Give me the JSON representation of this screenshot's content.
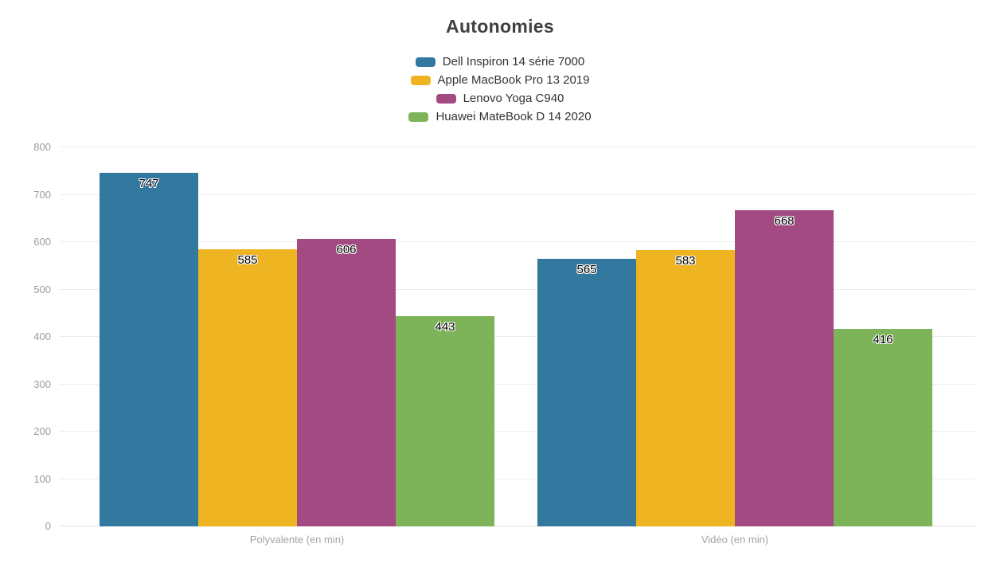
{
  "chart_data": {
    "type": "bar",
    "title": "Autonomies",
    "categories": [
      "Polyvalente (en min)",
      "Vidéo (en min)"
    ],
    "series": [
      {
        "name": "Dell Inspiron 14 série 7000",
        "color": "#33789f",
        "values": [
          747,
          565
        ]
      },
      {
        "name": "Apple MacBook Pro 13 2019",
        "color": "#eeb422",
        "values": [
          585,
          583
        ]
      },
      {
        "name": "Lenovo Yoga C940",
        "color": "#a44a82",
        "values": [
          606,
          668
        ]
      },
      {
        "name": "Huawei MateBook D 14 2020",
        "color": "#7db45a",
        "values": [
          443,
          416
        ]
      }
    ],
    "ylim": [
      0,
      800
    ],
    "ytick_step": 100,
    "yticks": [
      0,
      100,
      200,
      300,
      400,
      500,
      600,
      700,
      800
    ],
    "grid": true,
    "legend_position": "top-center",
    "value_labels": "inside-top",
    "colors": {
      "title_text": "#3f3f3f",
      "legend_text": "#333333",
      "axis_text": "#9c9c9c",
      "gridline": "#ededed",
      "background": "#ffffff",
      "value_label_text": "#000000",
      "value_label_outline": "#ffffff"
    }
  }
}
